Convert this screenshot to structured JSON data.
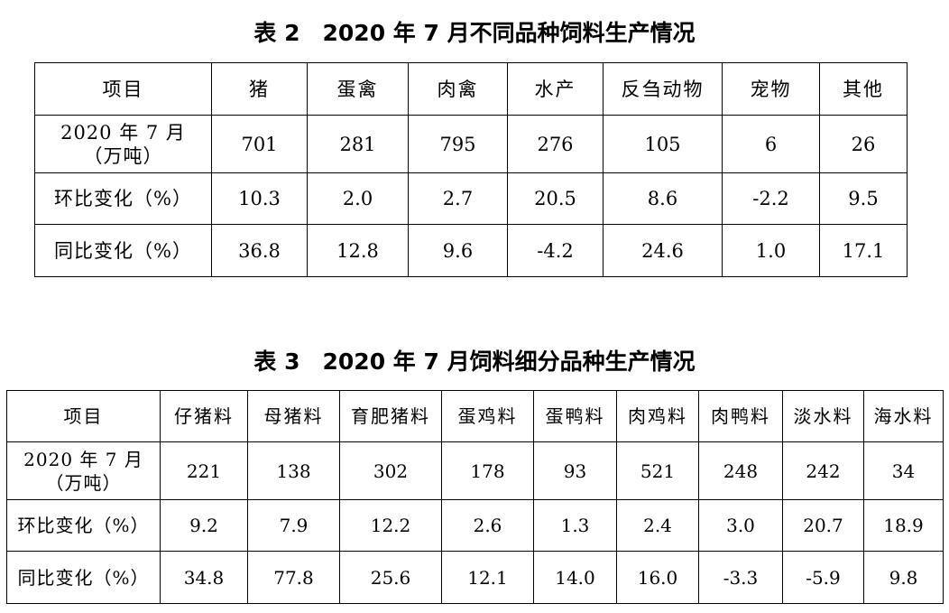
{
  "table2": {
    "title": "表 2　2020 年 7 月不同品种饲料生产情况",
    "headers": [
      "项目",
      "猪",
      "蛋禽",
      "肉禽",
      "水产",
      "反刍动物",
      "宠物",
      "其他"
    ],
    "rows": [
      {
        "label_line1": "2020 年 7 月",
        "label_line2": "（万吨）",
        "values": [
          "701",
          "281",
          "795",
          "276",
          "105",
          "6",
          "26"
        ]
      },
      {
        "label": "环比变化（%）",
        "values": [
          "10.3",
          "2.0",
          "2.7",
          "20.5",
          "8.6",
          "-2.2",
          "9.5"
        ]
      },
      {
        "label": "同比变化（%）",
        "values": [
          "36.8",
          "12.8",
          "9.6",
          "-4.2",
          "24.6",
          "1.0",
          "17.1"
        ]
      }
    ]
  },
  "table3": {
    "title": "表 3　2020 年 7 月饲料细分品种生产情况",
    "headers": [
      "项目",
      "仔猪料",
      "母猪料",
      "育肥猪料",
      "蛋鸡料",
      "蛋鸭料",
      "肉鸡料",
      "肉鸭料",
      "淡水料",
      "海水料"
    ],
    "rows": [
      {
        "label_line1": "2020 年 7 月",
        "label_line2": "（万吨）",
        "values": [
          "221",
          "138",
          "302",
          "178",
          "93",
          "521",
          "248",
          "242",
          "34"
        ]
      },
      {
        "label": "环比变化（%）",
        "values": [
          "9.2",
          "7.9",
          "12.2",
          "2.6",
          "1.3",
          "2.4",
          "3.0",
          "20.7",
          "18.9"
        ]
      },
      {
        "label": "同比变化（%）",
        "values": [
          "34.8",
          "77.8",
          "25.6",
          "12.1",
          "14.0",
          "16.0",
          "-3.3",
          "-5.9",
          "9.8"
        ]
      }
    ]
  }
}
